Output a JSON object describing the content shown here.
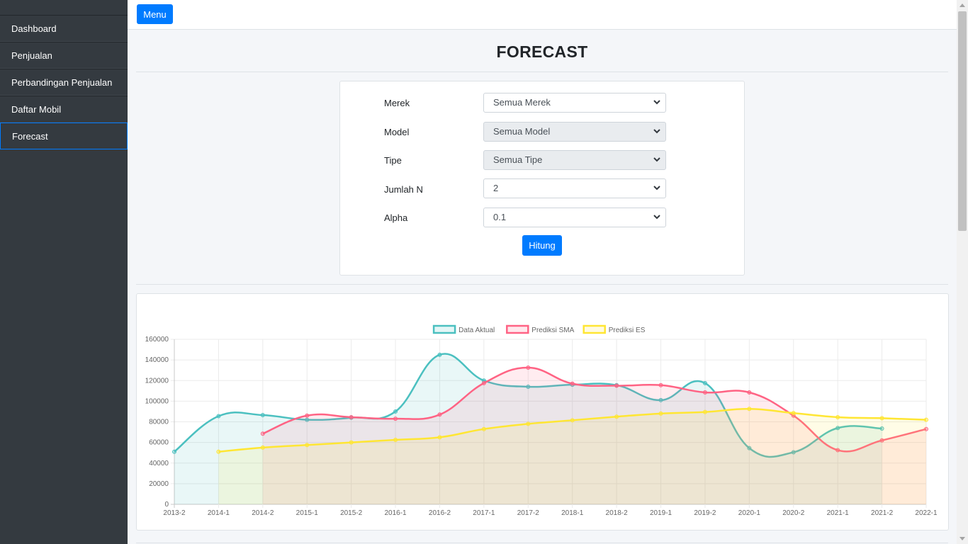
{
  "sidebar": {
    "items": [
      {
        "label": "Dashboard",
        "active": false
      },
      {
        "label": "Penjualan",
        "active": false
      },
      {
        "label": "Perbandingan Penjualan",
        "active": false
      },
      {
        "label": "Daftar Mobil",
        "active": false
      },
      {
        "label": "Forecast",
        "active": true
      }
    ]
  },
  "topbar": {
    "menu_label": "Menu"
  },
  "page": {
    "title": "FORECAST"
  },
  "form": {
    "fields": [
      {
        "label": "Merek",
        "value": "Semua Merek",
        "disabled": false
      },
      {
        "label": "Model",
        "value": "Semua Model",
        "disabled": true
      },
      {
        "label": "Tipe",
        "value": "Semua Tipe",
        "disabled": true
      },
      {
        "label": "Jumlah N",
        "value": "2",
        "disabled": false
      },
      {
        "label": "Alpha",
        "value": "0.1",
        "disabled": false
      }
    ],
    "submit_label": "Hitung"
  },
  "icons": {
    "select": "chevron-down-icon",
    "scroll_up": "scroll-up-arrow-icon",
    "scroll_down": "scroll-down-arrow-icon"
  },
  "colors": {
    "sidebar_bg": "#343a40",
    "primary": "#007bff",
    "actual": "#4bc0c0",
    "sma": "#ff6384",
    "es": "#ffe633"
  },
  "chart_data": {
    "type": "line",
    "categories": [
      "2013-2",
      "2014-1",
      "2014-2",
      "2015-1",
      "2015-2",
      "2016-1",
      "2016-2",
      "2017-1",
      "2017-2",
      "2018-1",
      "2018-2",
      "2019-1",
      "2019-2",
      "2020-1",
      "2020-2",
      "2021-1",
      "2021-2",
      "2022-1"
    ],
    "series": [
      {
        "name": "Data Aktual",
        "color": "#4bc0c0",
        "values": [
          51000,
          85500,
          86500,
          82000,
          84000,
          90000,
          145000,
          120000,
          114000,
          116000,
          115500,
          101000,
          117500,
          54500,
          50500,
          74000,
          73500,
          null
        ]
      },
      {
        "name": "Prediksi SMA",
        "color": "#ff6384",
        "values": [
          null,
          null,
          68500,
          86000,
          84500,
          83000,
          87000,
          117500,
          132500,
          117000,
          115000,
          115500,
          108500,
          108500,
          86000,
          52500,
          62000,
          73000
        ]
      },
      {
        "name": "Prediksi ES",
        "color": "#ffe633",
        "values": [
          null,
          51000,
          55000,
          57500,
          60000,
          62500,
          65000,
          73000,
          78000,
          81500,
          85000,
          88000,
          89500,
          92500,
          88500,
          84500,
          83500,
          82000
        ]
      }
    ],
    "ylim": [
      0,
      160000
    ],
    "yticks": [
      "0",
      "20000",
      "40000",
      "60000",
      "80000",
      "100000",
      "120000",
      "140000",
      "160000"
    ],
    "legend_position": "top",
    "grid": true,
    "smooth": true,
    "filled": true
  }
}
